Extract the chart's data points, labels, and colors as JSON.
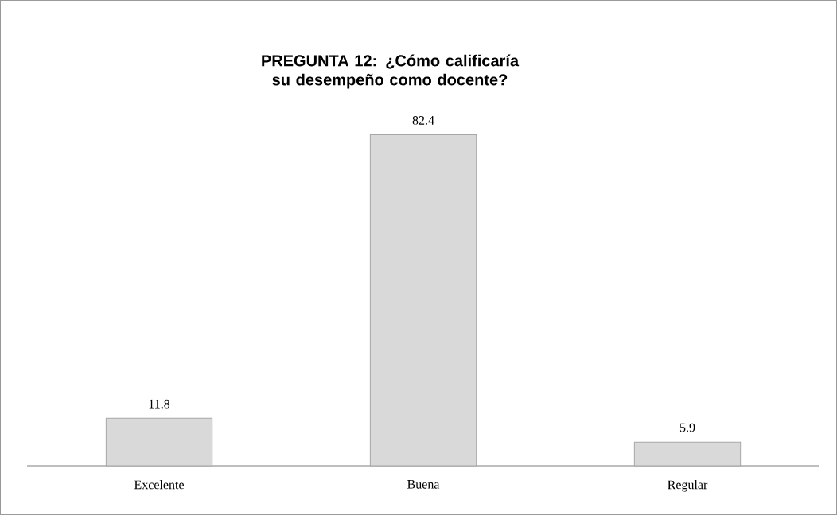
{
  "chart_data": {
    "type": "bar",
    "title": "PREGUNTA 12: ¿Cómo calificaría su desempeño como docente?",
    "categories": [
      "Excelente",
      "Buena",
      "Regular"
    ],
    "values": [
      11.8,
      82.4,
      5.9
    ],
    "color": "#d9d9d9",
    "data_labels": true
  }
}
